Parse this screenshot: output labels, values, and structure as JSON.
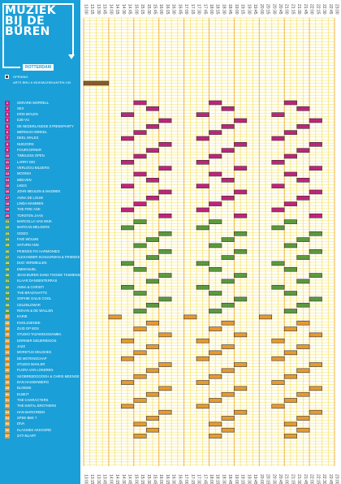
{
  "brand": {
    "lines": [
      "MUZIEK",
      "BIJ DE",
      "BUREN"
    ],
    "city": "ROTTERDAM"
  },
  "chart_data": {
    "type": "gantt",
    "time_labels": [
      "13:00",
      "13:15",
      "13:30",
      "13:45",
      "14:00",
      "14:15",
      "14:30",
      "14:45",
      "15:00",
      "15:15",
      "15:30",
      "15:45",
      "16:00",
      "16:15",
      "16:30",
      "16:45",
      "17:00",
      "17:15",
      "17:30",
      "17:45",
      "18:00",
      "18:15",
      "18:30",
      "18:45",
      "19:00",
      "19:15",
      "19:30",
      "19:45",
      "20:00",
      "20:15",
      "20:30",
      "20:45",
      "21:00",
      "21:15",
      "21:30",
      "21:45",
      "22:00",
      "22:15",
      "22:30",
      "22:45",
      "23:00"
    ],
    "colors": {
      "opening": "#8a5a2b",
      "group1": "#c2237a",
      "group2": "#5c9a3c",
      "group3": "#e89a2c",
      "grid_minor": "#f4e15a",
      "grid_major": "#f2b43a"
    },
    "header": {
      "opening_title": "OPENING",
      "opening_subtitle": "ARTS BRIJ & WIJKMUZIEKANTEN 100",
      "opening_bar": [
        13.0,
        14.0
      ]
    },
    "rows": [
      {
        "num": "1",
        "name": "GERARD MORRELL",
        "group": 1,
        "bars": [
          [
            15.0,
            15.5
          ],
          [
            18.0,
            18.5
          ],
          [
            21.0,
            21.5
          ]
        ]
      },
      {
        "num": "2",
        "name": "SEX",
        "group": 1,
        "bars": [
          [
            15.5,
            16.0
          ],
          [
            18.5,
            19.0
          ],
          [
            21.5,
            22.0
          ]
        ]
      },
      {
        "num": "3",
        "name": "KRIS MOLEN",
        "group": 1,
        "bars": [
          [
            14.5,
            15.0
          ],
          [
            17.5,
            18.0
          ],
          [
            20.5,
            21.0
          ]
        ]
      },
      {
        "num": "4",
        "name": "DJE-VU",
        "group": 1,
        "bars": [
          [
            16.0,
            16.5
          ],
          [
            19.0,
            19.5
          ],
          [
            22.0,
            22.5
          ]
        ]
      },
      {
        "num": "5",
        "name": "DE NEDERLANDSE STREEKPARTY",
        "group": 1,
        "bars": [
          [
            15.5,
            16.0
          ],
          [
            18.5,
            19.0
          ],
          [
            21.5,
            22.0
          ]
        ]
      },
      {
        "num": "6",
        "name": "MERMUSI WINKEL",
        "group": 1,
        "bars": [
          [
            15.0,
            15.5
          ],
          [
            18.0,
            18.5
          ],
          [
            21.0,
            21.5
          ]
        ]
      },
      {
        "num": "7",
        "name": "DEEL WALES",
        "group": 1,
        "bars": [
          [
            14.5,
            15.0
          ],
          [
            17.5,
            18.0
          ],
          [
            20.5,
            21.0
          ]
        ]
      },
      {
        "num": "8",
        "name": "NIJEZORS",
        "group": 1,
        "bars": [
          [
            16.0,
            16.5
          ],
          [
            19.0,
            19.5
          ],
          [
            22.0,
            22.5
          ]
        ]
      },
      {
        "num": "9",
        "name": "FOURCORNER",
        "group": 1,
        "bars": [
          [
            15.5,
            16.0
          ],
          [
            18.5,
            19.0
          ],
          [
            21.5,
            22.0
          ]
        ]
      },
      {
        "num": "10",
        "name": "TIMELESS OPEN",
        "group": 1,
        "bars": [
          [
            15.0,
            15.5
          ],
          [
            18.0,
            18.5
          ],
          [
            21.0,
            21.5
          ]
        ]
      },
      {
        "num": "11",
        "name": "LARRY DIG",
        "group": 1,
        "bars": [
          [
            14.5,
            15.0
          ],
          [
            17.5,
            18.0
          ],
          [
            20.5,
            21.0
          ]
        ]
      },
      {
        "num": "12",
        "name": "VERLOOIJ BILDERS",
        "group": 1,
        "bars": [
          [
            16.0,
            16.5
          ],
          [
            19.0,
            19.5
          ],
          [
            22.0,
            22.5
          ]
        ]
      },
      {
        "num": "13",
        "name": "MOONSI",
        "group": 1,
        "bars": [
          [
            15.0,
            15.5
          ],
          [
            18.0,
            18.5
          ],
          [
            21.0,
            21.5
          ]
        ]
      },
      {
        "num": "14",
        "name": "MEEVEN",
        "group": 1,
        "bars": [
          [
            15.5,
            16.0
          ],
          [
            18.5,
            19.0
          ],
          [
            21.5,
            22.0
          ]
        ]
      },
      {
        "num": "15",
        "name": "LIKES",
        "group": 1,
        "bars": [
          [
            14.5,
            15.0
          ],
          [
            17.5,
            18.0
          ],
          [
            20.5,
            21.0
          ]
        ]
      },
      {
        "num": "16",
        "name": "JOHN MEULEN & MAZMEN",
        "group": 1,
        "bars": [
          [
            16.0,
            16.5
          ],
          [
            19.0,
            19.5
          ],
          [
            22.0,
            22.5
          ]
        ]
      },
      {
        "num": "17",
        "name": "ANNA DE LOUW",
        "group": 1,
        "bars": [
          [
            15.5,
            16.0
          ],
          [
            18.5,
            19.0
          ],
          [
            21.5,
            22.0
          ]
        ]
      },
      {
        "num": "18",
        "name": "LINDA MAMMEN",
        "group": 1,
        "bars": [
          [
            15.0,
            15.5
          ],
          [
            18.0,
            18.5
          ],
          [
            21.0,
            21.5
          ]
        ]
      },
      {
        "num": "19",
        "name": "THE FIRE AGE",
        "group": 1,
        "bars": [
          [
            14.5,
            15.0
          ],
          [
            17.5,
            18.0
          ],
          [
            20.5,
            21.0
          ]
        ]
      },
      {
        "num": "20",
        "name": "TORSTEN JAAN",
        "group": 1,
        "bars": [
          [
            16.0,
            16.5
          ],
          [
            19.0,
            19.5
          ],
          [
            22.0,
            22.5
          ]
        ]
      },
      {
        "num": "21",
        "name": "MARCELLA VAN WIJK",
        "group": 2,
        "bars": [
          [
            15.0,
            15.5
          ],
          [
            18.0,
            18.5
          ],
          [
            21.0,
            21.5
          ]
        ]
      },
      {
        "num": "22",
        "name": "MARGAN MELGERS",
        "group": 2,
        "bars": [
          [
            14.5,
            15.0
          ],
          [
            17.5,
            18.0
          ],
          [
            20.5,
            21.0
          ]
        ]
      },
      {
        "num": "23",
        "name": "GIDEO",
        "group": 2,
        "bars": [
          [
            16.0,
            16.5
          ],
          [
            19.0,
            19.5
          ],
          [
            22.0,
            22.5
          ]
        ]
      },
      {
        "num": "24",
        "name": "FIVE WOLMS",
        "group": 2,
        "bars": [
          [
            15.5,
            16.0
          ],
          [
            18.5,
            19.0
          ],
          [
            21.5,
            22.0
          ]
        ]
      },
      {
        "num": "25",
        "name": "SATURN ANN",
        "group": 2,
        "bars": [
          [
            15.0,
            15.5
          ],
          [
            18.0,
            18.5
          ],
          [
            21.0,
            21.5
          ]
        ]
      },
      {
        "num": "26",
        "name": "FRIENDS FIX HARMONIES",
        "group": 2,
        "bars": [
          [
            16.0,
            16.5
          ],
          [
            19.0,
            19.5
          ],
          [
            22.0,
            22.5
          ]
        ]
      },
      {
        "num": "27",
        "name": "ALEXANDER SCHUURMAN & FRIENDS",
        "group": 2,
        "bars": [
          [
            15.5,
            16.0
          ],
          [
            18.5,
            19.0
          ],
          [
            21.5,
            22.0
          ]
        ]
      },
      {
        "num": "28",
        "name": "DUO VERMEULEN",
        "group": 2,
        "bars": [
          [
            14.5,
            15.0
          ],
          [
            17.5,
            18.0
          ],
          [
            20.5,
            21.0
          ]
        ]
      },
      {
        "num": "29",
        "name": "EMMANUEL",
        "group": 2,
        "bars": [
          [
            15.0,
            15.5
          ],
          [
            18.0,
            18.5
          ],
          [
            21.0,
            21.5
          ]
        ]
      },
      {
        "num": "30",
        "name": "JEAN BUREN SAND TOOSIE TSSMENSEN",
        "group": 2,
        "bars": [
          [
            16.0,
            16.5
          ],
          [
            19.0,
            19.5
          ],
          [
            22.0,
            22.5
          ]
        ]
      },
      {
        "num": "31",
        "name": "KLAAR DANSENTERRAS",
        "group": 2,
        "bars": [
          [
            15.5,
            16.0
          ],
          [
            18.5,
            19.0
          ],
          [
            21.5,
            22.0
          ]
        ]
      },
      {
        "num": "32",
        "name": "ANNA & CHRISTI",
        "group": 2,
        "bars": [
          [
            14.5,
            15.0
          ],
          [
            17.5,
            18.0
          ],
          [
            20.5,
            21.0
          ]
        ]
      },
      {
        "num": "33",
        "name": "THE BRAZAHATTS",
        "group": 2,
        "bars": [
          [
            15.0,
            15.5
          ],
          [
            18.0,
            18.5
          ],
          [
            21.0,
            21.5
          ]
        ]
      },
      {
        "num": "34",
        "name": "SOPHIE GALIS COOL",
        "group": 2,
        "bars": [
          [
            16.0,
            16.5
          ],
          [
            19.0,
            19.5
          ],
          [
            22.0,
            22.5
          ]
        ]
      },
      {
        "num": "35",
        "name": "CELEBLOWAR",
        "group": 2,
        "bars": [
          [
            15.5,
            16.0
          ],
          [
            18.5,
            19.0
          ],
          [
            21.5,
            22.0
          ]
        ]
      },
      {
        "num": "36",
        "name": "ROHAN & DE WALLEN",
        "group": 2,
        "bars": [
          [
            15.0,
            15.5
          ],
          [
            18.0,
            18.5
          ],
          [
            21.0,
            21.5
          ]
        ]
      },
      {
        "num": "37",
        "name": "KARIE",
        "group": 3,
        "bars": [
          [
            14.0,
            14.5
          ],
          [
            17.0,
            17.5
          ],
          [
            20.0,
            20.5
          ]
        ]
      },
      {
        "num": "38",
        "name": "KNOLSSENDE",
        "group": 3,
        "bars": [
          [
            15.5,
            16.0
          ],
          [
            18.5,
            19.0
          ],
          [
            21.5,
            22.0
          ]
        ]
      },
      {
        "num": "39",
        "name": "ZUID OP BOS",
        "group": 3,
        "bars": [
          [
            15.0,
            15.5
          ],
          [
            18.0,
            18.5
          ],
          [
            21.0,
            21.5
          ]
        ]
      },
      {
        "num": "40",
        "name": "STUDIO TAZAMOUSSAMBA",
        "group": 3,
        "bars": [
          [
            16.0,
            16.5
          ],
          [
            19.0,
            19.5
          ],
          [
            22.0,
            22.5
          ]
        ]
      },
      {
        "num": "41",
        "name": "DORMER DIDJERIDOOS",
        "group": 3,
        "bars": [
          [
            14.5,
            15.0
          ],
          [
            17.5,
            18.0
          ],
          [
            20.5,
            21.0
          ]
        ]
      },
      {
        "num": "42",
        "name": "JAZZ",
        "group": 3,
        "bars": [
          [
            15.5,
            16.0
          ],
          [
            18.5,
            19.0
          ],
          [
            21.5,
            22.0
          ]
        ]
      },
      {
        "num": "43",
        "name": "MORETUS DELIDIIES",
        "group": 3,
        "bars": [
          [
            15.0,
            15.5
          ],
          [
            18.0,
            18.5
          ],
          [
            21.0,
            21.5
          ]
        ]
      },
      {
        "num": "44",
        "name": "DE MOTENSCHAP",
        "group": 3,
        "bars": [
          [
            14.5,
            15.0
          ],
          [
            17.5,
            18.0
          ],
          [
            20.5,
            21.0
          ]
        ]
      },
      {
        "num": "45",
        "name": "STUDIO MAHLER",
        "group": 3,
        "bars": [
          [
            16.0,
            16.5
          ],
          [
            19.0,
            19.5
          ],
          [
            22.0,
            22.5
          ]
        ]
      },
      {
        "num": "46",
        "name": "FLORA VAN LOKEREN",
        "group": 3,
        "bars": [
          [
            15.5,
            16.0
          ],
          [
            18.5,
            19.0
          ],
          [
            21.5,
            22.0
          ]
        ]
      },
      {
        "num": "47",
        "name": "SKOBREEDGOOGH & CHRIS MEENGE",
        "group": 3,
        "bars": [
          [
            15.0,
            15.5
          ],
          [
            18.0,
            18.5
          ],
          [
            21.0,
            21.5
          ]
        ]
      },
      {
        "num": "48",
        "name": "DAN HASSENBERG",
        "group": 3,
        "bars": [
          [
            14.5,
            15.0
          ],
          [
            17.5,
            18.0
          ],
          [
            20.5,
            21.0
          ]
        ]
      },
      {
        "num": "49",
        "name": "BLOEMS",
        "group": 3,
        "bars": [
          [
            16.0,
            16.5
          ],
          [
            19.0,
            19.5
          ],
          [
            22.0,
            22.5
          ]
        ]
      },
      {
        "num": "50",
        "name": "ELBEIT",
        "group": 3,
        "bars": [
          [
            15.5,
            16.0
          ],
          [
            18.5,
            19.0
          ],
          [
            21.5,
            22.0
          ]
        ]
      },
      {
        "num": "51",
        "name": "THE CHARACTERS",
        "group": 3,
        "bars": [
          [
            15.0,
            15.5
          ],
          [
            18.0,
            18.5
          ],
          [
            21.0,
            21.5
          ]
        ]
      },
      {
        "num": "52",
        "name": "THE KINTAL BROTHERS",
        "group": 3,
        "bars": [
          [
            14.5,
            15.0
          ],
          [
            17.5,
            18.0
          ],
          [
            20.5,
            21.0
          ]
        ]
      },
      {
        "num": "53",
        "name": "HAN MARGREEN",
        "group": 3,
        "bars": [
          [
            16.0,
            16.5
          ],
          [
            19.0,
            19.5
          ],
          [
            22.0,
            22.5
          ]
        ]
      },
      {
        "num": "54",
        "name": "SPEE-BEE 7",
        "group": 3,
        "bars": [
          [
            15.5,
            16.0
          ],
          [
            18.5,
            19.0
          ],
          [
            21.5,
            22.0
          ]
        ]
      },
      {
        "num": "55",
        "name": "DIVA",
        "group": 3,
        "bars": [
          [
            15.0,
            15.5
          ],
          [
            18.0,
            18.5
          ],
          [
            21.0,
            21.5
          ]
        ]
      },
      {
        "num": "56",
        "name": "KLASSIEK AKKOORD",
        "group": 3,
        "bars": [
          [
            15.5,
            16.0
          ],
          [
            18.5,
            19.0
          ],
          [
            21.5,
            22.0
          ]
        ]
      },
      {
        "num": "57",
        "name": "ZATI BLART",
        "group": 3,
        "bars": [
          [
            15.0,
            15.5
          ],
          [
            18.0,
            18.5
          ],
          [
            21.0,
            21.5
          ]
        ]
      }
    ]
  }
}
